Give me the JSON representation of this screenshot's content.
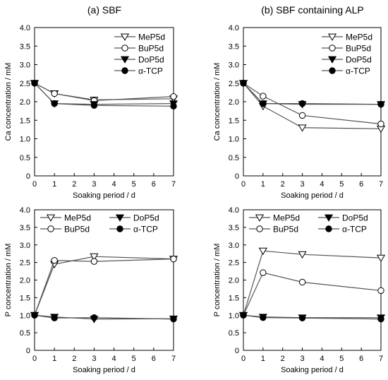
{
  "column_titles": [
    "(a) SBF",
    "(b) SBF containing ALP"
  ],
  "colors": {
    "line": "#555555",
    "axis": "#000000",
    "open_fill": "#ffffff",
    "filled": "#000000"
  },
  "chart_data": [
    {
      "type": "line",
      "title": "",
      "xlabel": "Soaking period / d",
      "ylabel": "Ca concentration / mM",
      "xlim": [
        0,
        7
      ],
      "ylim": [
        0,
        4.0
      ],
      "xticks": [
        0,
        1,
        2,
        3,
        4,
        5,
        6,
        7
      ],
      "yticks": [
        "0",
        "0.5",
        "1.0",
        "1.5",
        "2.0",
        "2.5",
        "3.0",
        "3.5",
        "4.0"
      ],
      "grid": false,
      "legend_placement": "top-right",
      "legend_layout": "column",
      "x": [
        0,
        1,
        3,
        7
      ],
      "series": [
        {
          "name": "MeP5d",
          "marker": "triangle-down-open",
          "values": [
            2.5,
            2.22,
            2.05,
            2.08
          ]
        },
        {
          "name": "BuP5d",
          "marker": "circle-open",
          "values": [
            2.5,
            2.22,
            2.03,
            2.14
          ]
        },
        {
          "name": "DoP5d",
          "marker": "triangle-down-filled",
          "values": [
            2.5,
            1.95,
            1.93,
            1.95
          ]
        },
        {
          "name": "α-TCP",
          "marker": "circle-filled",
          "values": [
            2.5,
            1.95,
            1.9,
            1.88
          ]
        }
      ]
    },
    {
      "type": "line",
      "title": "",
      "xlabel": "Soaking period / d",
      "ylabel": "Ca concentration / mM",
      "xlim": [
        0,
        7
      ],
      "ylim": [
        0,
        4.0
      ],
      "xticks": [
        0,
        1,
        2,
        3,
        4,
        5,
        6,
        7
      ],
      "yticks": [
        "0",
        "0.5",
        "1.0",
        "1.5",
        "2.0",
        "2.5",
        "3.0",
        "3.5",
        "4.0"
      ],
      "grid": false,
      "legend_placement": "top-right",
      "legend_layout": "column",
      "x": [
        0,
        1,
        3,
        7
      ],
      "series": [
        {
          "name": "MeP5d",
          "marker": "triangle-down-open",
          "values": [
            2.5,
            1.88,
            1.3,
            1.27
          ]
        },
        {
          "name": "BuP5d",
          "marker": "circle-open",
          "values": [
            2.5,
            2.15,
            1.63,
            1.4
          ]
        },
        {
          "name": "DoP5d",
          "marker": "triangle-down-filled",
          "values": [
            2.5,
            1.95,
            1.93,
            1.93
          ]
        },
        {
          "name": "α-TCP",
          "marker": "circle-filled",
          "values": [
            2.5,
            1.95,
            1.95,
            1.93
          ]
        }
      ]
    },
    {
      "type": "line",
      "title": "",
      "xlabel": "Soaking period / d",
      "ylabel": "P concentration / mM",
      "xlim": [
        0,
        7
      ],
      "ylim": [
        0,
        4.0
      ],
      "xticks": [
        0,
        1,
        2,
        3,
        4,
        5,
        6,
        7
      ],
      "yticks": [
        "0",
        "0.5",
        "1.0",
        "1.5",
        "2.0",
        "2.5",
        "3.0",
        "3.5",
        "4.0"
      ],
      "grid": false,
      "legend_placement": "top",
      "legend_layout": "grid",
      "x": [
        0,
        1,
        3,
        7
      ],
      "series": [
        {
          "name": "MeP5d",
          "marker": "triangle-down-open",
          "values": [
            1.0,
            2.45,
            2.67,
            2.6
          ]
        },
        {
          "name": "BuP5d",
          "marker": "circle-open",
          "values": [
            1.0,
            2.56,
            2.53,
            2.6
          ]
        },
        {
          "name": "DoP5d",
          "marker": "triangle-down-filled",
          "values": [
            1.0,
            0.95,
            0.89,
            0.9
          ]
        },
        {
          "name": "α-TCP",
          "marker": "circle-filled",
          "values": [
            1.0,
            0.92,
            0.93,
            0.89
          ]
        }
      ]
    },
    {
      "type": "line",
      "title": "",
      "xlabel": "Soaking period / d",
      "ylabel": "P concentration / mM",
      "xlim": [
        0,
        7
      ],
      "ylim": [
        0,
        4.0
      ],
      "xticks": [
        0,
        1,
        2,
        3,
        4,
        5,
        6,
        7
      ],
      "yticks": [
        "0",
        "0.5",
        "1.0",
        "1.5",
        "2.0",
        "2.5",
        "3.0",
        "3.5",
        "4.0"
      ],
      "grid": false,
      "legend_placement": "top",
      "legend_layout": "grid",
      "x": [
        0,
        1,
        3,
        7
      ],
      "series": [
        {
          "name": "MeP5d",
          "marker": "triangle-down-open",
          "values": [
            1.0,
            2.83,
            2.73,
            2.63
          ]
        },
        {
          "name": "BuP5d",
          "marker": "circle-open",
          "values": [
            1.0,
            2.21,
            1.94,
            1.7
          ]
        },
        {
          "name": "DoP5d",
          "marker": "triangle-down-filled",
          "values": [
            1.0,
            0.95,
            0.93,
            0.93
          ]
        },
        {
          "name": "α-TCP",
          "marker": "circle-filled",
          "values": [
            1.0,
            0.93,
            0.92,
            0.89
          ]
        }
      ]
    }
  ]
}
